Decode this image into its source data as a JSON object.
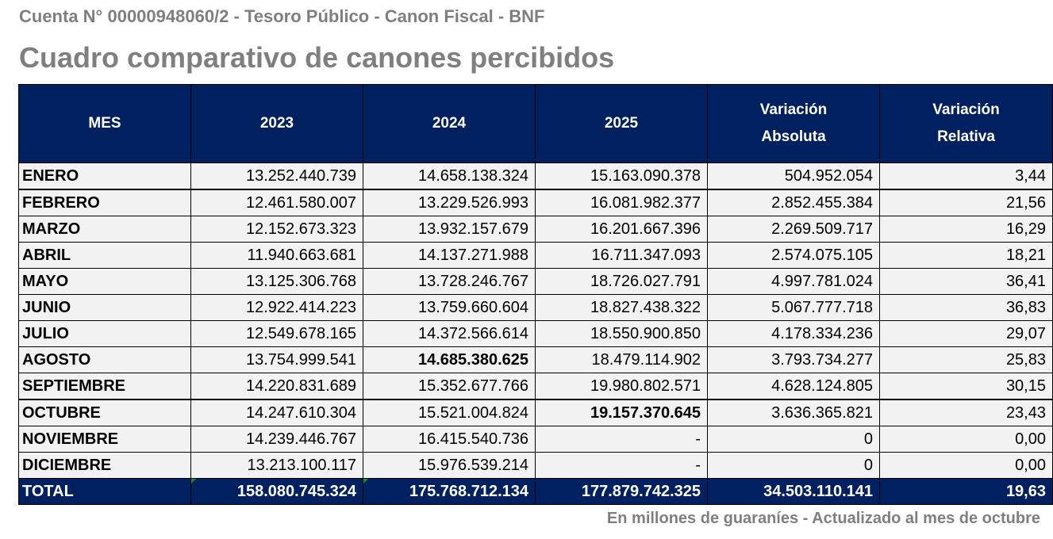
{
  "subtitle": "Cuenta N° 00000948060/2 - Tesoro Público - Canon Fiscal - BNF",
  "title": "Cuadro comparativo de canones percibidos",
  "headers": [
    "MES",
    "2023",
    "2024",
    "2025",
    "Variación Absoluta",
    "Variación Relativa"
  ],
  "rows": [
    {
      "mes": "ENERO",
      "y2023": "13.252.440.739",
      "y2024": "14.658.138.324",
      "y2025": "15.163.090.378",
      "abs": "504.952.054",
      "rel": "3,44"
    },
    {
      "mes": "FEBRERO",
      "y2023": "12.461.580.007",
      "y2024": "13.229.526.993",
      "y2025": "16.081.982.377",
      "abs": "2.852.455.384",
      "rel": "21,56"
    },
    {
      "mes": "MARZO",
      "y2023": "12.152.673.323",
      "y2024": "13.932.157.679",
      "y2025": "16.201.667.396",
      "abs": "2.269.509.717",
      "rel": "16,29"
    },
    {
      "mes": "ABRIL",
      "y2023": "11.940.663.681",
      "y2024": "14.137.271.988",
      "y2025": "16.711.347.093",
      "abs": "2.574.075.105",
      "rel": "18,21"
    },
    {
      "mes": "MAYO",
      "y2023": "13.125.306.768",
      "y2024": "13.728.246.767",
      "y2025": "18.726.027.791",
      "abs": "4.997.781.024",
      "rel": "36,41"
    },
    {
      "mes": "JUNIO",
      "y2023": "12.922.414.223",
      "y2024": "13.759.660.604",
      "y2025": "18.827.438.322",
      "abs": "5.067.777.718",
      "rel": "36,83"
    },
    {
      "mes": "JULIO",
      "y2023": "12.549.678.165",
      "y2024": "14.372.566.614",
      "y2025": "18.550.900.850",
      "abs": "4.178.334.236",
      "rel": "29,07"
    },
    {
      "mes": "AGOSTO",
      "y2023": "13.754.999.541",
      "y2024": "14.685.380.625",
      "y2025": "18.479.114.902",
      "abs": "3.793.734.277",
      "rel": "25,83"
    },
    {
      "mes": "SEPTIEMBRE",
      "y2023": "14.220.831.689",
      "y2024": "15.352.677.766",
      "y2025": "19.980.802.571",
      "abs": "4.628.124.805",
      "rel": "30,15"
    },
    {
      "mes": "OCTUBRE",
      "y2023": "14.247.610.304",
      "y2024": "15.521.004.824",
      "y2025": "19.157.370.645",
      "abs": "3.636.365.821",
      "rel": "23,43"
    },
    {
      "mes": "NOVIEMBRE",
      "y2023": "14.239.446.767",
      "y2024": "16.415.540.736",
      "y2025": "-",
      "abs": "0",
      "rel": "0,00"
    },
    {
      "mes": "DICIEMBRE",
      "y2023": "13.213.100.117",
      "y2024": "15.976.539.214",
      "y2025": "-",
      "abs": "0",
      "rel": "0,00"
    }
  ],
  "total": {
    "mes": "TOTAL",
    "y2023": "158.080.745.324",
    "y2024": "175.768.712.134",
    "y2025": "177.879.742.325",
    "abs": "34.503.110.141",
    "rel": "19,63"
  },
  "note": "En millones de guaraníes - Actualizado al mes de octubre",
  "colors": {
    "header_bg": "#002060",
    "row_bg": "#f2f2f2",
    "title": "#7f7f7f"
  }
}
